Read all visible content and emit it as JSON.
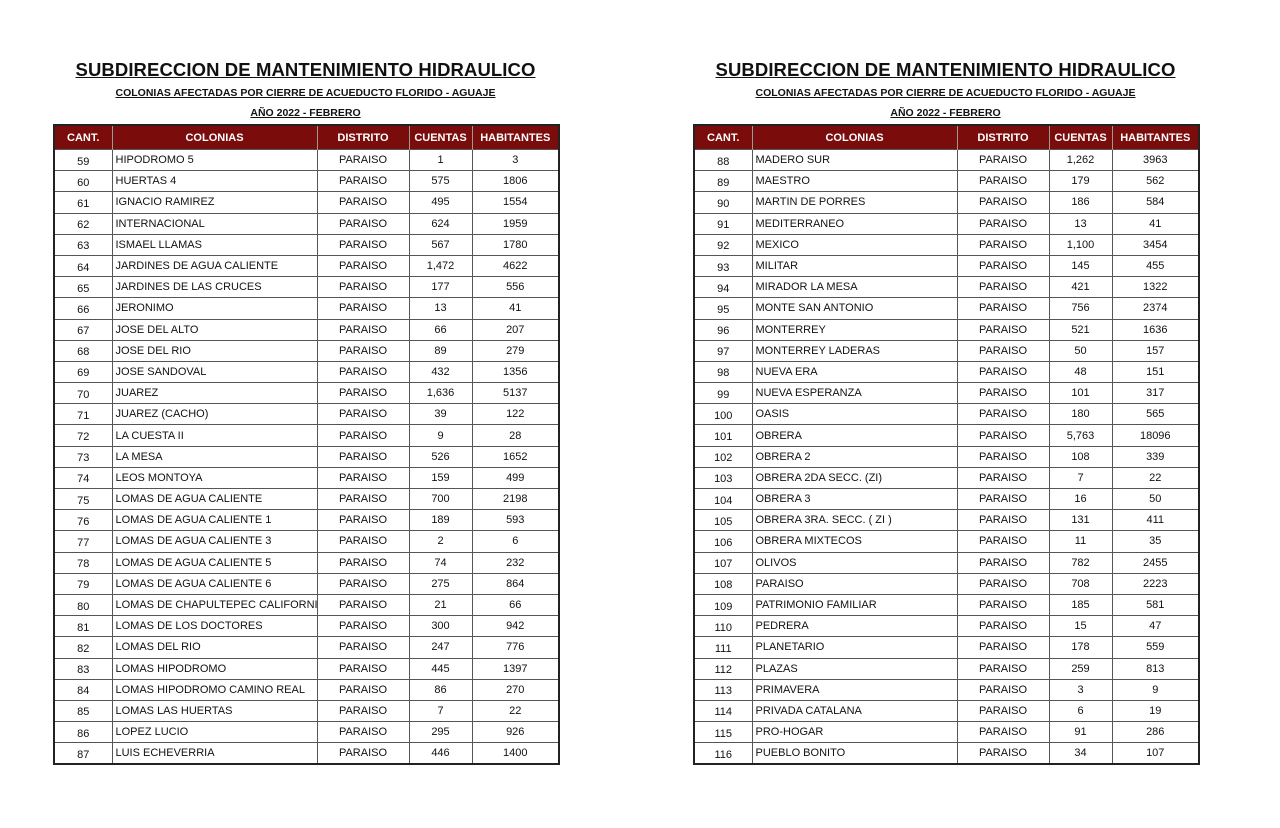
{
  "header": {
    "title": "SUBDIRECCION DE MANTENIMIENTO HIDRAULICO",
    "subtitle": "COLONIAS AFECTADAS POR CIERRE DE ACUEDUCTO FLORIDO - AGUAJE",
    "year": "AÑO  2022  - FEBRERO"
  },
  "columns": [
    "CANT.",
    "COLONIAS",
    "DISTRITO",
    "CUENTAS",
    "HABITANTES"
  ],
  "colors": {
    "header_bg": "#7a0c0c",
    "header_text": "#ffffff"
  },
  "tables": [
    {
      "rows": [
        [
          "59",
          "HIPODROMO 5",
          "PARAISO",
          "1",
          "3"
        ],
        [
          "60",
          "HUERTAS 4",
          "PARAISO",
          "575",
          "1806"
        ],
        [
          "61",
          "IGNACIO RAMIREZ",
          "PARAISO",
          "495",
          "1554"
        ],
        [
          "62",
          "INTERNACIONAL",
          "PARAISO",
          "624",
          "1959"
        ],
        [
          "63",
          "ISMAEL LLAMAS",
          "PARAISO",
          "567",
          "1780"
        ],
        [
          "64",
          "JARDINES DE AGUA CALIENTE",
          "PARAISO",
          "1,472",
          "4622"
        ],
        [
          "65",
          "JARDINES DE LAS CRUCES",
          "PARAISO",
          "177",
          "556"
        ],
        [
          "66",
          "JERONIMO",
          "PARAISO",
          "13",
          "41"
        ],
        [
          "67",
          "JOSE DEL ALTO",
          "PARAISO",
          "66",
          "207"
        ],
        [
          "68",
          "JOSE DEL RIO",
          "PARAISO",
          "89",
          "279"
        ],
        [
          "69",
          "JOSE SANDOVAL",
          "PARAISO",
          "432",
          "1356"
        ],
        [
          "70",
          "JUAREZ",
          "PARAISO",
          "1,636",
          "5137"
        ],
        [
          "71",
          "JUAREZ (CACHO)",
          "PARAISO",
          "39",
          "122"
        ],
        [
          "72",
          "LA CUESTA II",
          "PARAISO",
          "9",
          "28"
        ],
        [
          "73",
          "LA MESA",
          "PARAISO",
          "526",
          "1652"
        ],
        [
          "74",
          "LEOS MONTOYA",
          "PARAISO",
          "159",
          "499"
        ],
        [
          "75",
          "LOMAS DE AGUA CALIENTE",
          "PARAISO",
          "700",
          "2198"
        ],
        [
          "76",
          "LOMAS DE AGUA CALIENTE 1",
          "PARAISO",
          "189",
          "593"
        ],
        [
          "77",
          "LOMAS DE AGUA CALIENTE 3",
          "PARAISO",
          "2",
          "6"
        ],
        [
          "78",
          "LOMAS DE AGUA CALIENTE 5",
          "PARAISO",
          "74",
          "232"
        ],
        [
          "79",
          "LOMAS DE AGUA CALIENTE 6",
          "PARAISO",
          "275",
          "864"
        ],
        [
          "80",
          "LOMAS DE CHAPULTEPEC CALIFORNIA",
          "PARAISO",
          "21",
          "66"
        ],
        [
          "81",
          "LOMAS DE LOS DOCTORES",
          "PARAISO",
          "300",
          "942"
        ],
        [
          "82",
          "LOMAS DEL RIO",
          "PARAISO",
          "247",
          "776"
        ],
        [
          "83",
          "LOMAS HIPODROMO",
          "PARAISO",
          "445",
          "1397"
        ],
        [
          "84",
          "LOMAS HIPODROMO CAMINO REAL",
          "PARAISO",
          "86",
          "270"
        ],
        [
          "85",
          "LOMAS LAS HUERTAS",
          "PARAISO",
          "7",
          "22"
        ],
        [
          "86",
          "LOPEZ LUCIO",
          "PARAISO",
          "295",
          "926"
        ],
        [
          "87",
          "LUIS ECHEVERRIA",
          "PARAISO",
          "446",
          "1400"
        ]
      ]
    },
    {
      "rows": [
        [
          "88",
          "MADERO SUR",
          "PARAISO",
          "1,262",
          "3963"
        ],
        [
          "89",
          "MAESTRO",
          "PARAISO",
          "179",
          "562"
        ],
        [
          "90",
          "MARTIN DE PORRES",
          "PARAISO",
          "186",
          "584"
        ],
        [
          "91",
          "MEDITERRANEO",
          "PARAISO",
          "13",
          "41"
        ],
        [
          "92",
          "MEXICO",
          "PARAISO",
          "1,100",
          "3454"
        ],
        [
          "93",
          "MILITAR",
          "PARAISO",
          "145",
          "455"
        ],
        [
          "94",
          "MIRADOR LA MESA",
          "PARAISO",
          "421",
          "1322"
        ],
        [
          "95",
          "MONTE SAN ANTONIO",
          "PARAISO",
          "756",
          "2374"
        ],
        [
          "96",
          "MONTERREY",
          "PARAISO",
          "521",
          "1636"
        ],
        [
          "97",
          "MONTERREY LADERAS",
          "PARAISO",
          "50",
          "157"
        ],
        [
          "98",
          "NUEVA ERA",
          "PARAISO",
          "48",
          "151"
        ],
        [
          "99",
          "NUEVA ESPERANZA",
          "PARAISO",
          "101",
          "317"
        ],
        [
          "100",
          "OASIS",
          "PARAISO",
          "180",
          "565"
        ],
        [
          "101",
          "OBRERA",
          "PARAISO",
          "5,763",
          "18096"
        ],
        [
          "102",
          "OBRERA 2",
          "PARAISO",
          "108",
          "339"
        ],
        [
          "103",
          "OBRERA 2DA SECC. (ZI)",
          "PARAISO",
          "7",
          "22"
        ],
        [
          "104",
          "OBRERA 3",
          "PARAISO",
          "16",
          "50"
        ],
        [
          "105",
          "OBRERA 3RA. SECC. ( ZI )",
          "PARAISO",
          "131",
          "411"
        ],
        [
          "106",
          "OBRERA MIXTECOS",
          "PARAISO",
          "11",
          "35"
        ],
        [
          "107",
          "OLIVOS",
          "PARAISO",
          "782",
          "2455"
        ],
        [
          "108",
          "PARAISO",
          "PARAISO",
          "708",
          "2223"
        ],
        [
          "109",
          "PATRIMONIO FAMILIAR",
          "PARAISO",
          "185",
          "581"
        ],
        [
          "110",
          "PEDRERA",
          "PARAISO",
          "15",
          "47"
        ],
        [
          "111",
          "PLANETARIO",
          "PARAISO",
          "178",
          "559"
        ],
        [
          "112",
          "PLAZAS",
          "PARAISO",
          "259",
          "813"
        ],
        [
          "113",
          "PRIMAVERA",
          "PARAISO",
          "3",
          "9"
        ],
        [
          "114",
          "PRIVADA CATALANA",
          "PARAISO",
          "6",
          "19"
        ],
        [
          "115",
          "PRO-HOGAR",
          "PARAISO",
          "91",
          "286"
        ],
        [
          "116",
          "PUEBLO BONITO",
          "PARAISO",
          "34",
          "107"
        ]
      ]
    }
  ]
}
